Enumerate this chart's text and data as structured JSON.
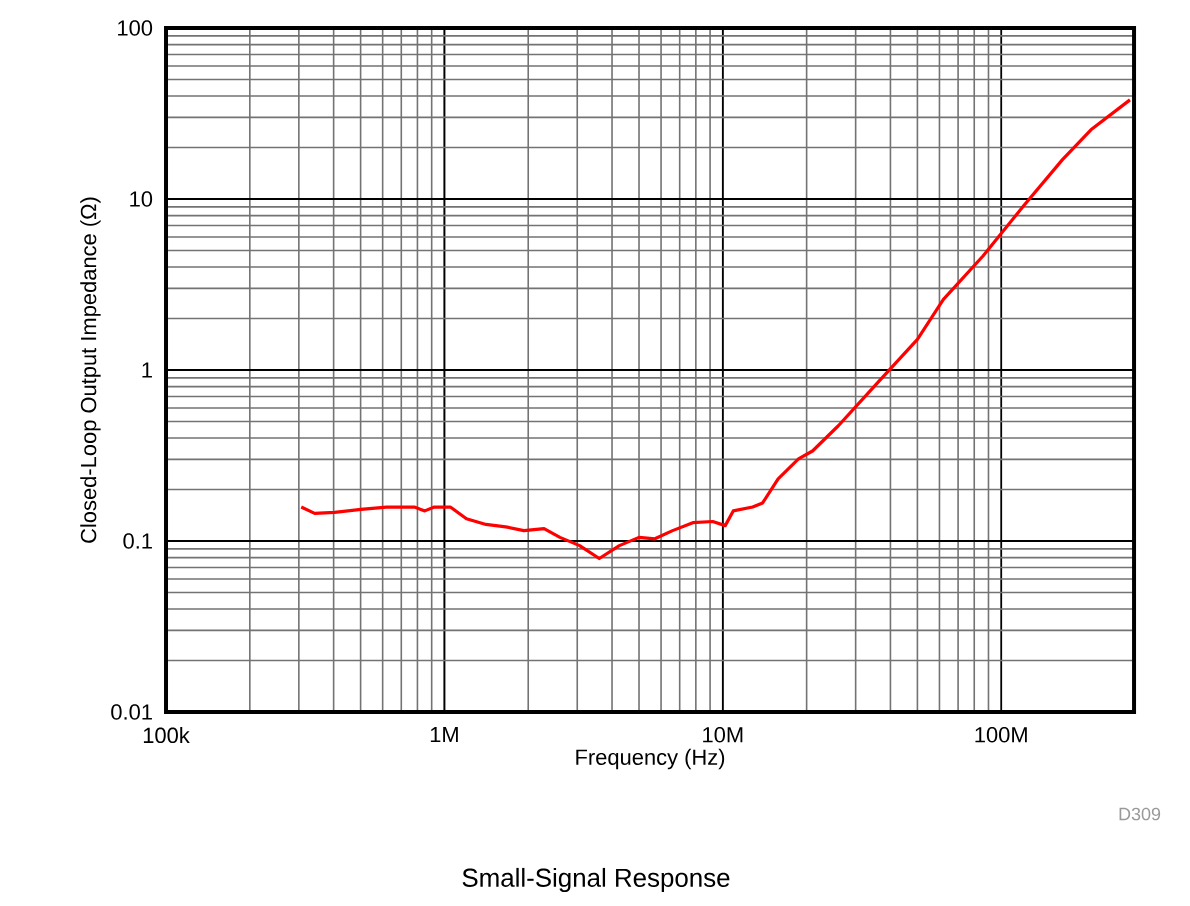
{
  "chart_data": {
    "type": "line",
    "title": "Small-Signal Response",
    "xlabel": "Frequency (Hz)",
    "ylabel": "Closed-Loop Output Impedance (Ω)",
    "log": "xy",
    "grid": true,
    "xlim": [
      100000,
      300000000
    ],
    "ylim": [
      0.01,
      100
    ],
    "xticks": [
      {
        "value": 100000,
        "label": "100k"
      },
      {
        "value": 1000000,
        "label": "1M"
      },
      {
        "value": 10000000,
        "label": "10M"
      },
      {
        "value": 100000000,
        "label": "100M"
      }
    ],
    "yticks": [
      0.01,
      0.1,
      1,
      10,
      100
    ],
    "annotations": [
      "D309"
    ],
    "series": [
      {
        "color": "#ff0000",
        "x": [
          306000,
          342000,
          403000,
          501000,
          620000,
          780000,
          850000,
          920000,
          1050000,
          1200000,
          1410000,
          1660000,
          1930000,
          2280000,
          2600000,
          3060000,
          3600000,
          4250000,
          5000000,
          5700000,
          6600000,
          7800000,
          9200000,
          10200000,
          10900000,
          12800000,
          13900000,
          15800000,
          18700000,
          21000000,
          26000000,
          36000000,
          50000000,
          62000000,
          86000000,
          120000000,
          166000000,
          210000000,
          290000000
        ],
        "values": [
          0.158,
          0.145,
          0.147,
          0.153,
          0.158,
          0.158,
          0.15,
          0.158,
          0.158,
          0.135,
          0.125,
          0.121,
          0.115,
          0.118,
          0.105,
          0.094,
          0.079,
          0.094,
          0.105,
          0.103,
          0.115,
          0.128,
          0.13,
          0.123,
          0.15,
          0.158,
          0.167,
          0.231,
          0.302,
          0.336,
          0.472,
          0.843,
          1.51,
          2.59,
          4.64,
          9.08,
          17.0,
          25.4,
          38.0
        ]
      }
    ]
  }
}
